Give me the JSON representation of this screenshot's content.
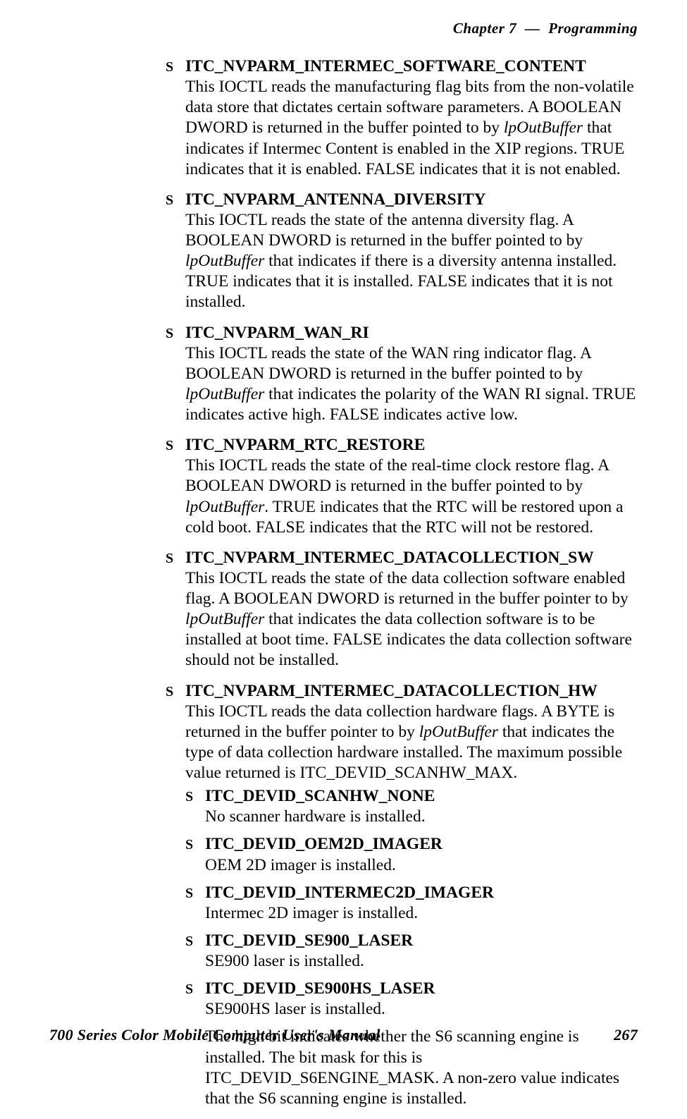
{
  "header": {
    "chapter_label": "Chapter",
    "chapter_number": "7",
    "dash": "—",
    "section_title": "Programming"
  },
  "footer": {
    "manual_title": "700 Series Color Mobile Computer User's Manual",
    "page_number": "267"
  },
  "items": [
    {
      "title": "ITC_NVPARM_INTERMEC_SOFTWARE_CONTENT",
      "body_pre": "This IOCTL reads the manufacturing flag bits from the non-volatile data store that dictates certain software parameters. A BOOLEAN DWORD is returned in the buffer pointed to by ",
      "body_ital": "lpOutBuffer",
      "body_post": " that indicates if Intermec Content is enabled in the XIP regions. TRUE indicates that it is enabled. FALSE indicates that it is not enabled."
    },
    {
      "title": "ITC_NVPARM_ANTENNA_DIVERSITY",
      "body_pre": "This IOCTL reads the state of the antenna diversity flag. A BOOLEAN DWORD is returned in the buffer pointed to by ",
      "body_ital": "lpOutBuffer",
      "body_post": " that indicates if there is a diversity antenna installed. TRUE indicates that it is installed. FALSE indicates that it is not installed."
    },
    {
      "title": "ITC_NVPARM_WAN_RI",
      "body_pre": "This IOCTL reads the state of the WAN ring indicator flag. A BOOLEAN DWORD is returned in the buffer pointed to by ",
      "body_ital": "lpOutBuffer",
      "body_post": " that indicates the polarity of the WAN RI signal. TRUE indicates active high. FALSE indicates active low."
    },
    {
      "title": "ITC_NVPARM_RTC_RESTORE",
      "body_pre": "This IOCTL reads the state of the real-time clock restore flag. A BOOLEAN DWORD is returned in the buffer pointed to by ",
      "body_ital": "lpOutBuffer",
      "body_post": ". TRUE indicates that the RTC will be restored upon a cold boot. FALSE indicates that the RTC will not be restored."
    },
    {
      "title": "ITC_NVPARM_INTERMEC_DATACOLLECTION_SW",
      "body_pre": "This IOCTL reads the state of the data collection software enabled flag. A BOOLEAN DWORD is returned in the buffer pointer to by ",
      "body_ital": "lpOutBuffer",
      "body_post": " that indicates the data collection software is to be installed at boot time. FALSE indicates the data collection software should not be installed."
    },
    {
      "title": "ITC_NVPARM_INTERMEC_DATACOLLECTION_HW",
      "body_pre": "This IOCTL reads the data collection hardware flags. A BYTE is returned in the buffer pointer to by ",
      "body_ital": "lpOutBuffer",
      "body_post": " that indicates the type of data collection hardware installed. The maximum possible value returned is ITC_DEVID_SCANHW_MAX.",
      "sub": [
        {
          "title": "ITC_DEVID_SCANHW_NONE",
          "body": "No scanner hardware is installed."
        },
        {
          "title": "ITC_DEVID_OEM2D_IMAGER",
          "body": "OEM 2D imager is installed."
        },
        {
          "title": "ITC_DEVID_INTERMEC2D_IMAGER",
          "body": "Intermec 2D imager is installed."
        },
        {
          "title": "ITC_DEVID_SE900_LASER",
          "body": "SE900 laser is installed."
        },
        {
          "title": "ITC_DEVID_SE900HS_LASER",
          "body": "SE900HS laser is installed."
        }
      ],
      "trailing": "The high bit indicates whether the S6 scanning engine is installed. The bit mask for this is ITC_DEVID_S6ENGINE_MASK. A non-zero value indicates that the S6 scanning engine is installed."
    }
  ]
}
